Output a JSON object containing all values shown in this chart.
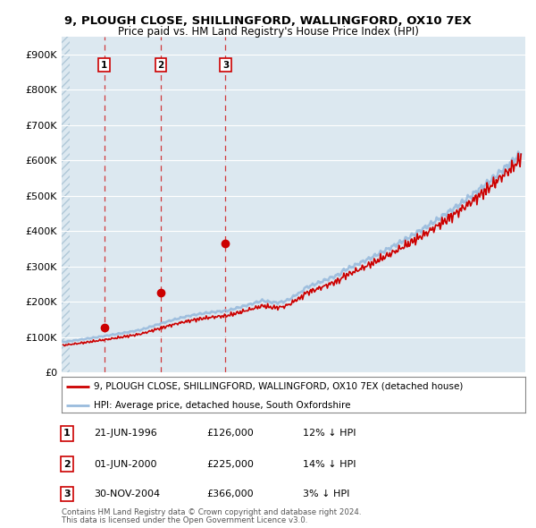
{
  "title": "9, PLOUGH CLOSE, SHILLINGFORD, WALLINGFORD, OX10 7EX",
  "subtitle": "Price paid vs. HM Land Registry's House Price Index (HPI)",
  "sale_prices": [
    126000,
    225000,
    366000
  ],
  "sale_labels": [
    "1",
    "2",
    "3"
  ],
  "sale_pct": [
    "12% ↓ HPI",
    "14% ↓ HPI",
    "3% ↓ HPI"
  ],
  "sale_date_strs": [
    "21-JUN-1996",
    "01-JUN-2000",
    "30-NOV-2004"
  ],
  "sale_price_strs": [
    "£126,000",
    "£225,000",
    "£366,000"
  ],
  "legend_line1": "9, PLOUGH CLOSE, SHILLINGFORD, WALLINGFORD, OX10 7EX (detached house)",
  "legend_line2": "HPI: Average price, detached house, South Oxfordshire",
  "footer1": "Contains HM Land Registry data © Crown copyright and database right 2024.",
  "footer2": "This data is licensed under the Open Government Licence v3.0.",
  "plot_bg": "#dce8f0",
  "line_color_red": "#cc0000",
  "line_color_blue": "#99bbdd",
  "ylim": [
    0,
    950000
  ],
  "yticks": [
    0,
    100000,
    200000,
    300000,
    400000,
    500000,
    600000,
    700000,
    800000,
    900000
  ],
  "ytick_labels": [
    "£0",
    "£100K",
    "£200K",
    "£300K",
    "£400K",
    "£500K",
    "£600K",
    "£700K",
    "£800K",
    "£900K"
  ],
  "xlim_start": 1993.5,
  "xlim_end": 2025.8,
  "sale_year_nums": [
    1996.47,
    2000.42,
    2004.92
  ]
}
